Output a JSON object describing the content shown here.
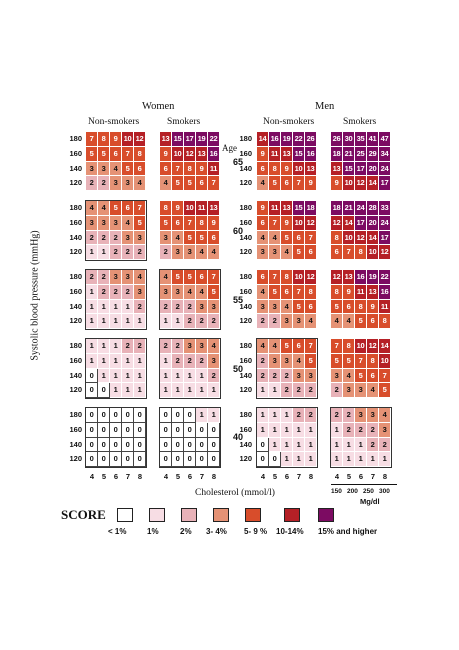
{
  "chart_data": {
    "type": "heatmap",
    "groups": {
      "women": "Women",
      "men": "Men",
      "nonsmokers": "Non-smokers",
      "smokers": "Smokers"
    },
    "age_label": "Age",
    "ages": [
      "65",
      "60",
      "55",
      "50",
      "40"
    ],
    "bp_values": [
      "180",
      "160",
      "140",
      "120"
    ],
    "chol_values": [
      "4",
      "5",
      "6",
      "7",
      "8"
    ],
    "xlabel": "Cholesterol (mmol/l)",
    "ylabel": "Systolic blood pressure (mmHg)",
    "mgdl_ticks": [
      "150",
      "200",
      "250",
      "300"
    ],
    "mgdl_unit": "Mg/dl",
    "grids": {
      "women_nonsmokers": [
        [
          [
            7,
            8,
            9,
            10,
            12
          ],
          [
            5,
            5,
            6,
            7,
            8
          ],
          [
            3,
            3,
            4,
            5,
            6
          ],
          [
            2,
            2,
            3,
            3,
            4
          ]
        ],
        [
          [
            4,
            4,
            5,
            6,
            7
          ],
          [
            3,
            3,
            3,
            4,
            5
          ],
          [
            2,
            2,
            2,
            3,
            3
          ],
          [
            1,
            1,
            2,
            2,
            2
          ]
        ],
        [
          [
            2,
            2,
            3,
            3,
            4
          ],
          [
            1,
            2,
            2,
            2,
            3
          ],
          [
            1,
            1,
            1,
            1,
            2
          ],
          [
            1,
            1,
            1,
            1,
            1
          ]
        ],
        [
          [
            1,
            1,
            1,
            2,
            2
          ],
          [
            1,
            1,
            1,
            1,
            1
          ],
          [
            0,
            1,
            1,
            1,
            1
          ],
          [
            0,
            0,
            1,
            1,
            1
          ]
        ],
        [
          [
            0,
            0,
            0,
            0,
            0
          ],
          [
            0,
            0,
            0,
            0,
            0
          ],
          [
            0,
            0,
            0,
            0,
            0
          ],
          [
            0,
            0,
            0,
            0,
            0
          ]
        ]
      ],
      "women_smokers": [
        [
          [
            13,
            15,
            17,
            19,
            22
          ],
          [
            9,
            10,
            12,
            13,
            16
          ],
          [
            6,
            7,
            8,
            9,
            11
          ],
          [
            4,
            5,
            5,
            6,
            7
          ]
        ],
        [
          [
            8,
            9,
            10,
            11,
            13
          ],
          [
            5,
            6,
            7,
            8,
            9
          ],
          [
            3,
            4,
            5,
            5,
            6
          ],
          [
            2,
            3,
            3,
            4,
            4
          ]
        ],
        [
          [
            4,
            5,
            5,
            6,
            7
          ],
          [
            3,
            3,
            4,
            4,
            5
          ],
          [
            2,
            2,
            2,
            3,
            3
          ],
          [
            1,
            1,
            2,
            2,
            2
          ]
        ],
        [
          [
            2,
            2,
            3,
            3,
            4
          ],
          [
            1,
            2,
            2,
            2,
            3
          ],
          [
            1,
            1,
            1,
            1,
            2
          ],
          [
            1,
            1,
            1,
            1,
            1
          ]
        ],
        [
          [
            0,
            0,
            0,
            1,
            1
          ],
          [
            0,
            0,
            0,
            0,
            0
          ],
          [
            0,
            0,
            0,
            0,
            0
          ],
          [
            0,
            0,
            0,
            0,
            0
          ]
        ]
      ],
      "men_nonsmokers": [
        [
          [
            14,
            16,
            19,
            22,
            26
          ],
          [
            9,
            11,
            13,
            15,
            16
          ],
          [
            6,
            8,
            9,
            10,
            13
          ],
          [
            4,
            5,
            6,
            7,
            9
          ]
        ],
        [
          [
            9,
            11,
            13,
            15,
            18
          ],
          [
            6,
            7,
            9,
            10,
            12
          ],
          [
            4,
            4,
            5,
            6,
            7
          ],
          [
            3,
            3,
            4,
            5,
            6
          ]
        ],
        [
          [
            6,
            7,
            8,
            10,
            12
          ],
          [
            4,
            5,
            6,
            7,
            8
          ],
          [
            3,
            3,
            4,
            5,
            6
          ],
          [
            2,
            2,
            3,
            3,
            4
          ]
        ],
        [
          [
            4,
            4,
            5,
            6,
            7
          ],
          [
            2,
            3,
            3,
            4,
            5
          ],
          [
            2,
            2,
            2,
            3,
            3
          ],
          [
            1,
            1,
            2,
            2,
            2
          ]
        ],
        [
          [
            1,
            1,
            1,
            2,
            2
          ],
          [
            1,
            1,
            1,
            1,
            1
          ],
          [
            0,
            1,
            1,
            1,
            1
          ],
          [
            0,
            0,
            1,
            1,
            1
          ]
        ]
      ],
      "men_smokers": [
        [
          [
            26,
            30,
            35,
            41,
            47
          ],
          [
            18,
            21,
            25,
            29,
            34
          ],
          [
            13,
            15,
            17,
            20,
            24
          ],
          [
            9,
            10,
            12,
            14,
            17
          ]
        ],
        [
          [
            18,
            21,
            24,
            28,
            33
          ],
          [
            12,
            14,
            17,
            20,
            24
          ],
          [
            8,
            10,
            12,
            14,
            17
          ],
          [
            6,
            7,
            8,
            10,
            12
          ]
        ],
        [
          [
            12,
            13,
            16,
            19,
            22
          ],
          [
            8,
            9,
            11,
            13,
            16
          ],
          [
            5,
            6,
            8,
            9,
            11
          ],
          [
            4,
            4,
            5,
            6,
            8
          ]
        ],
        [
          [
            7,
            8,
            10,
            12,
            14
          ],
          [
            5,
            5,
            7,
            8,
            10
          ],
          [
            3,
            4,
            5,
            6,
            7
          ],
          [
            2,
            3,
            3,
            4,
            5
          ]
        ],
        [
          [
            2,
            2,
            3,
            3,
            4
          ],
          [
            1,
            2,
            2,
            2,
            3
          ],
          [
            1,
            1,
            1,
            2,
            2
          ],
          [
            1,
            1,
            1,
            1,
            1
          ]
        ]
      ]
    },
    "legend_title": "SCORE",
    "legend": [
      {
        "label": "< 1%",
        "color": "#ffffff"
      },
      {
        "label": "1%",
        "color": "#f7dde4"
      },
      {
        "label": "2%",
        "color": "#e8b2b8"
      },
      {
        "label": "3- 4%",
        "color": "#e59275"
      },
      {
        "label": "5- 9 %",
        "color": "#d84d2b"
      },
      {
        "label": "10-14%",
        "color": "#b52026"
      },
      {
        "label": "15% and higher",
        "color": "#7c0b62"
      }
    ]
  }
}
